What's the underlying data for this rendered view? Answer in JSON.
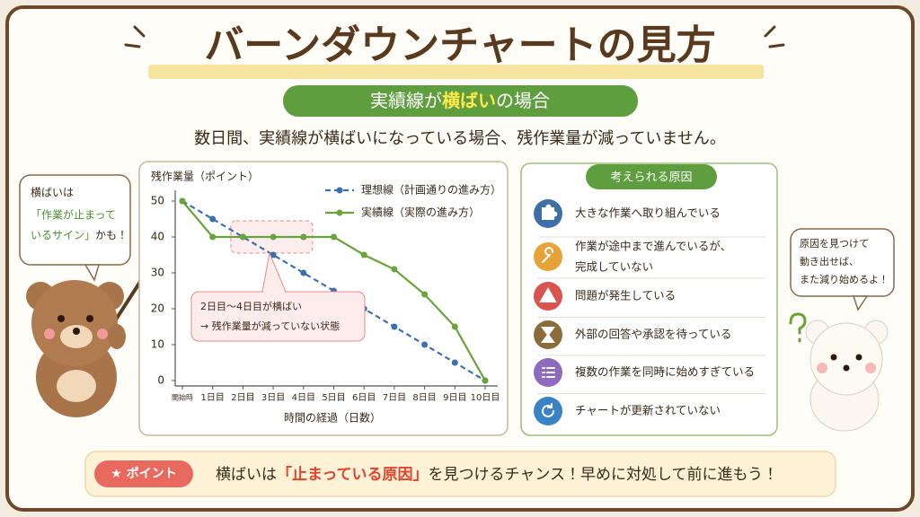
{
  "header": {
    "title": "バーンダウンチャートの見方",
    "subtitle_pre": "実績線が",
    "subtitle_highlight": "横ばい",
    "subtitle_post": "の場合",
    "description": "数日間、実績線が横ばいになっている場合、残作業量が減っていません。"
  },
  "left_bubble": {
    "line1": "横ばいは",
    "line2": "「作業が止まって",
    "line3a": "いるサイン」",
    "line3b": "かも！"
  },
  "right_bubble": {
    "line1": "原因を見つけて",
    "line2": "動き出せば、",
    "line3": "また減り始めるよ！"
  },
  "chart_data": {
    "type": "line",
    "y_label": "残作業量（ポイント）",
    "x_label": "時間の経過（日数）",
    "categories": [
      "開始時",
      "1日目",
      "2日目",
      "3日目",
      "4日目",
      "5日目",
      "6日目",
      "7日目",
      "8日目",
      "9日目",
      "10日目"
    ],
    "series": [
      {
        "name": "理想線（計画通りの進み方）",
        "color": "#3b6fb0",
        "dashed": true,
        "values": [
          50,
          45,
          40,
          35,
          30,
          25,
          20,
          15,
          10,
          5,
          0
        ]
      },
      {
        "name": "実績線（実際の進み方）",
        "color": "#6aa33a",
        "dashed": false,
        "values": [
          50,
          40,
          40,
          40,
          40,
          40,
          35,
          31,
          24,
          15,
          0
        ]
      }
    ],
    "ylim": [
      -1.5,
      52
    ],
    "yticks": [
      0,
      10,
      20,
      30,
      40,
      50
    ],
    "grid": false,
    "legend": "upper right",
    "annotations": [
      "2日目〜4日目が横ばい",
      "→ 残作業量が減っていない状態"
    ]
  },
  "causes": {
    "title": "考えられる原因",
    "items": [
      "大きな作業へ取り組んでいる",
      "作業が途中まで進んでいるが、",
      "完成していない",
      "問題が発生している",
      "外部の回答や承認を待っている",
      "複数の作業を同時に始めすぎている",
      "チャートが更新されていない"
    ]
  },
  "point": {
    "badge": "★ ポイント",
    "text_pre": "横ばいは",
    "text_highlight": "「止まっている原因」",
    "text_post": "を見つけるチャンス！早めに対処して前に進もう！"
  }
}
